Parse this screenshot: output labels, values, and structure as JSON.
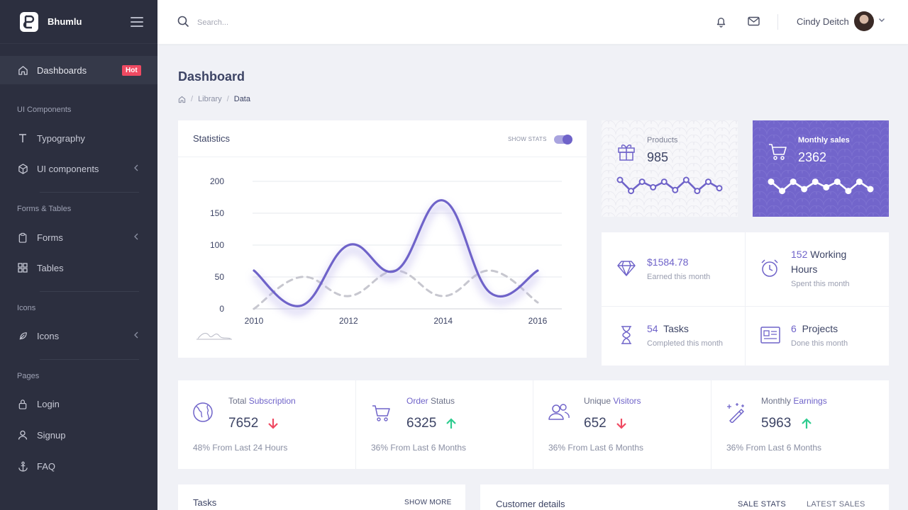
{
  "app": {
    "brand": "Bhumlu"
  },
  "sidebar": {
    "active": {
      "label": "Dashboards",
      "badge": "Hot"
    },
    "sections": [
      {
        "heading": "UI Components",
        "items": [
          "Typography",
          "UI components"
        ]
      },
      {
        "heading": "Forms & Tables",
        "items": [
          "Forms",
          "Tables"
        ]
      },
      {
        "heading": "Icons",
        "items": [
          "Icons"
        ]
      },
      {
        "heading": "Pages",
        "items": [
          "Login",
          "Signup",
          "FAQ"
        ]
      }
    ]
  },
  "header": {
    "search_placeholder": "Search...",
    "user_name": "Cindy Deitch"
  },
  "page": {
    "title": "Dashboard",
    "breadcrumb": [
      "Library",
      "Data"
    ]
  },
  "statistics": {
    "title": "Statistics",
    "toggle_label": "SHOW STATS",
    "toggle_on": true
  },
  "chart_data": {
    "type": "line",
    "title": "Statistics",
    "x": [
      2010,
      2011,
      2012,
      2013,
      2014,
      2015,
      2016
    ],
    "xticks": [
      "2010",
      "2012",
      "2014",
      "2016"
    ],
    "yticks": [
      "0",
      "50",
      "100",
      "150",
      "200"
    ],
    "ylim": [
      0,
      200
    ],
    "series": [
      {
        "name": "primary",
        "color": "#6f63c9",
        "style": "solid",
        "values": [
          60,
          5,
          100,
          60,
          170,
          25,
          60
        ]
      },
      {
        "name": "secondary",
        "color": "#c7c7cf",
        "style": "dashed",
        "values": [
          0,
          50,
          20,
          60,
          20,
          60,
          10
        ]
      }
    ]
  },
  "tiles": {
    "products": {
      "label": "Products",
      "value": "985",
      "spark": [
        20,
        8,
        18,
        12,
        18,
        9,
        20,
        8,
        18,
        11
      ]
    },
    "sales": {
      "label": "Monthly sales",
      "value": "2362",
      "spark": [
        18,
        8,
        18,
        10,
        18,
        12,
        18,
        8,
        18,
        10
      ]
    }
  },
  "info": {
    "earned": {
      "value": "$1584.78",
      "sub": "Earned this month"
    },
    "hours": {
      "value": "152",
      "label": "Working Hours",
      "sub": "Spent this month"
    },
    "tasks": {
      "value": "54",
      "label": "Tasks",
      "sub": "Completed this month"
    },
    "projects": {
      "value": "6",
      "label": "Projects",
      "sub": "Done this month"
    }
  },
  "summary": [
    {
      "pre": "Total ",
      "hl": "Subscription",
      "post": "",
      "value": "7652",
      "trend": "down",
      "foot": "48% From Last 24 Hours"
    },
    {
      "pre": "",
      "hl": "Order",
      "post": " Status",
      "value": "6325",
      "trend": "up",
      "foot": "36% From Last 6 Months"
    },
    {
      "pre": "Unique ",
      "hl": "Visitors",
      "post": "",
      "value": "652",
      "trend": "down",
      "foot": "36% From Last 6 Months"
    },
    {
      "pre": "Monthly ",
      "hl": "Earnings",
      "post": "",
      "value": "5963",
      "trend": "up",
      "foot": "36% From Last 6 Months"
    }
  ],
  "bottom": {
    "tasks": {
      "title": "Tasks",
      "link": "SHOW MORE"
    },
    "customer": {
      "title": "Customer details",
      "tabs": [
        "SALE STATS",
        "LATEST SALES"
      ]
    }
  },
  "colors": {
    "accent": "#6f63c9",
    "danger": "#ef4a62",
    "success": "#2ecc8f",
    "sidebar": "#2c2f3f"
  }
}
